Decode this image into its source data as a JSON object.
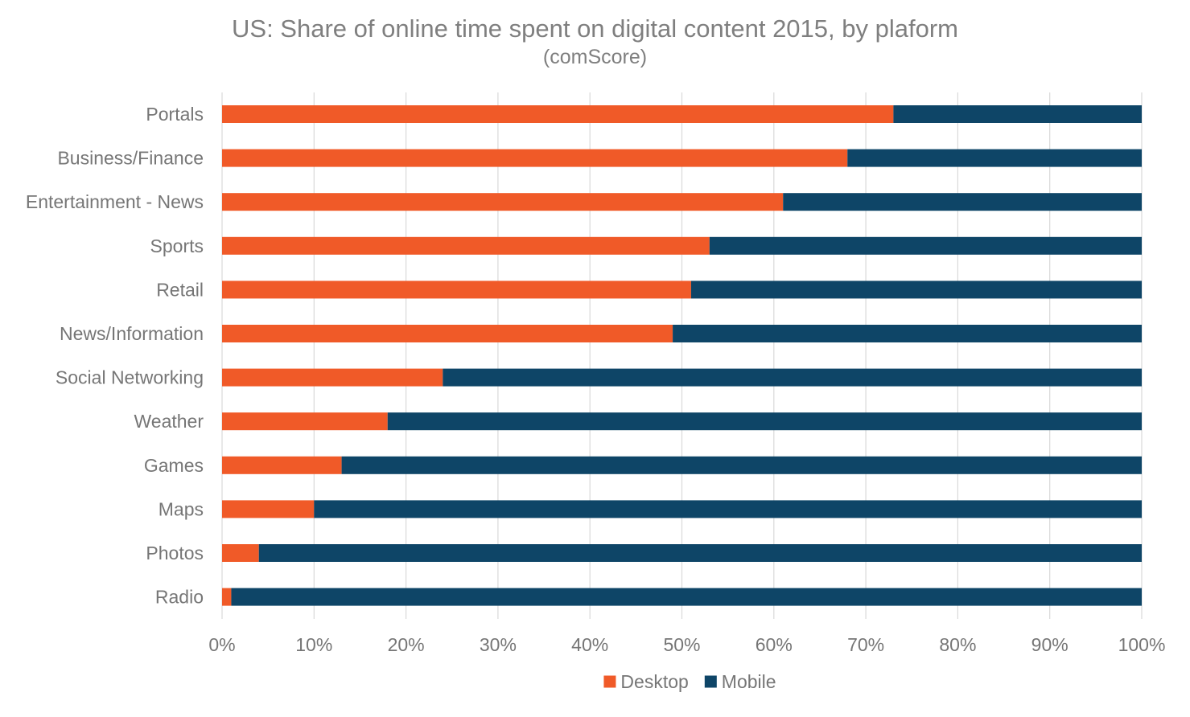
{
  "chart_data": {
    "type": "bar",
    "orientation": "horizontal",
    "stacked": true,
    "title": "US: Share of online time spent on digital content 2015, by plaform",
    "subtitle": "(comScore)",
    "categories": [
      "Portals",
      "Business/Finance",
      "Entertainment - News",
      "Sports",
      "Retail",
      "News/Information",
      "Social Networking",
      "Weather",
      "Games",
      "Maps",
      "Photos",
      "Radio"
    ],
    "series": [
      {
        "name": "Desktop",
        "color": "#f05a28",
        "values": [
          73,
          68,
          61,
          53,
          51,
          49,
          24,
          18,
          13,
          10,
          4,
          1
        ]
      },
      {
        "name": "Mobile",
        "color": "#0e4567",
        "values": [
          27,
          32,
          39,
          47,
          49,
          51,
          76,
          82,
          87,
          90,
          96,
          99
        ]
      }
    ],
    "x_ticks": [
      "0%",
      "10%",
      "20%",
      "30%",
      "40%",
      "50%",
      "60%",
      "70%",
      "80%",
      "90%",
      "100%"
    ],
    "xlim": [
      0,
      100
    ],
    "grid": "vertical",
    "gridline_color": "#d9d9d9",
    "legend": "bottom-center"
  }
}
